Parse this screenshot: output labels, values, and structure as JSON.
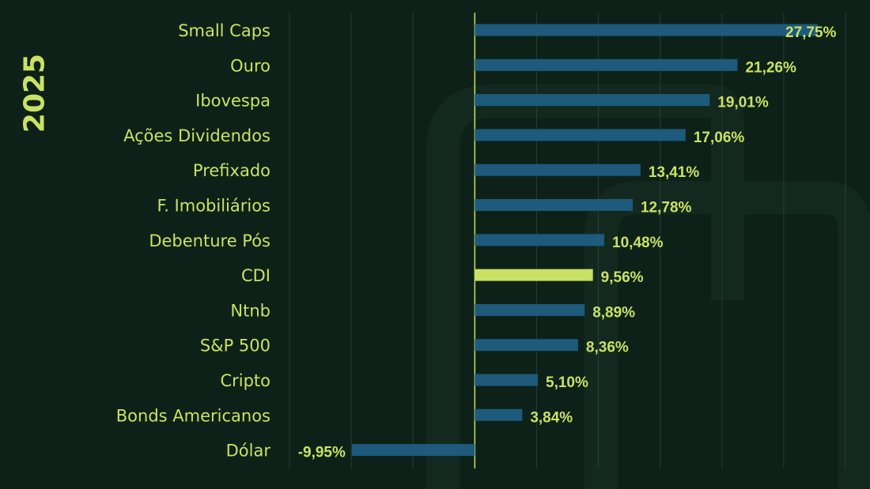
{
  "title": "2025",
  "colors": {
    "background": "#0e2119",
    "bar": "#1d5a7c",
    "highlight_bar": "#c9e265",
    "text": "#c9e265",
    "grid": "#2b3b33",
    "zero_line": "#c9e265",
    "watermark": "#13291f"
  },
  "chart_data": {
    "type": "bar",
    "orientation": "horizontal",
    "title": "2025",
    "xlabel": "",
    "ylabel": "",
    "unit": "%",
    "xlim": [
      -15,
      30
    ],
    "grid": true,
    "highlight": "CDI",
    "categories": [
      "Small Caps",
      "Ouro",
      "Ibovespa",
      "Ações Dividendos",
      "Prefixado",
      "F. Imobiliários",
      "Debenture Pós",
      "CDI",
      "Ntnb",
      "S&P 500",
      "Cripto",
      "Bonds Americanos",
      "Dólar"
    ],
    "values": [
      27.75,
      21.26,
      19.01,
      17.06,
      13.41,
      12.78,
      10.48,
      9.56,
      8.89,
      8.36,
      5.1,
      3.84,
      -9.95
    ],
    "labels": [
      "27,75%",
      "21,26%",
      "19,01%",
      "17,06%",
      "13,41%",
      "12,78%",
      "10,48%",
      "9,56%",
      "8,89%",
      "8,36%",
      "5,10%",
      "3,84%",
      "-9,95%"
    ]
  }
}
